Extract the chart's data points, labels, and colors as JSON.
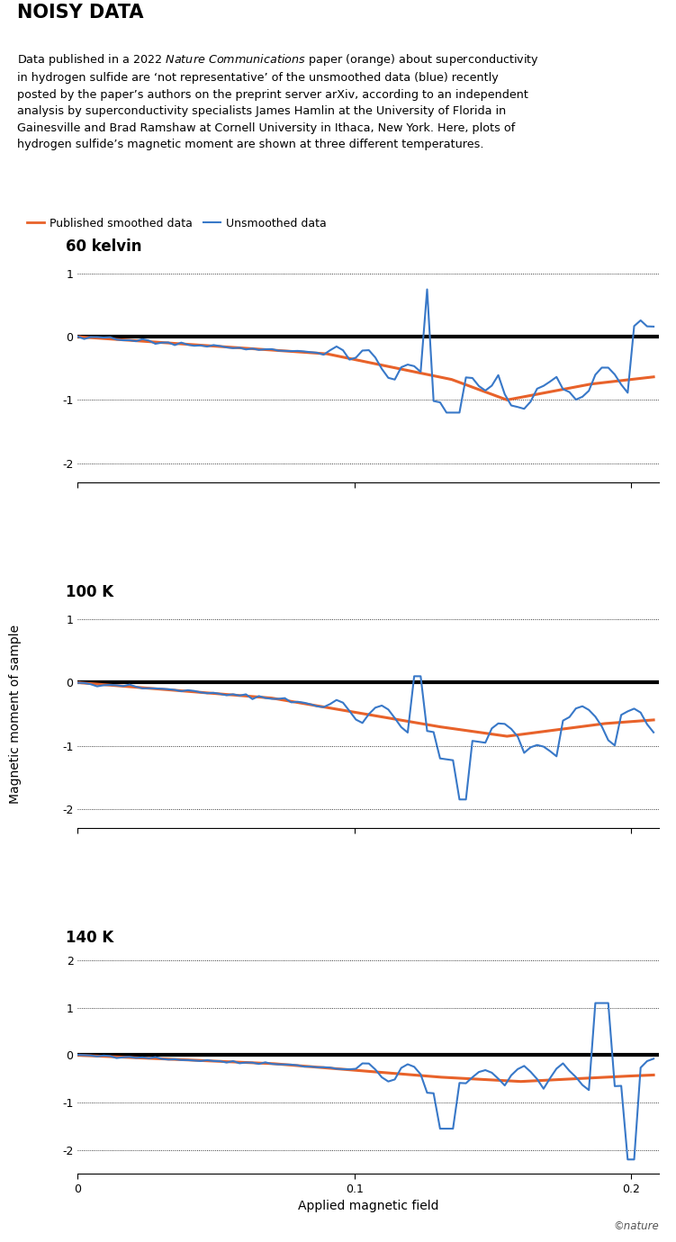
{
  "title": "NOISY DATA",
  "description_parts": [
    {
      "text": "Data published in a 2022 ",
      "italic": false
    },
    {
      "text": "Nature Communications",
      "italic": true
    },
    {
      "text": " paper (orange) about superconductivity in hydrogen sulfide are ‘not representative’ of the unsmoothed data (blue) recently posted by the paper’s authors on the preprint server arXiv, according to an independent analysis by superconductivity specialists James Hamlin at the University of Florida in Gainesville and Brad Ramshaw at Cornell University in Ithaca, New York. Here, plots of hydrogen sulfide’s magnetic moment are shown at three different temperatures.",
      "italic": false
    }
  ],
  "legend_smoothed": "Published smoothed data",
  "legend_unsmoothed": "Unsmoothed data",
  "color_smoothed": "#E8622A",
  "color_unsmoothed": "#3878C8",
  "ylabel": "Magnetic moment of sample",
  "xlabel": "Applied magnetic field",
  "copyright": "©nature",
  "subplots": [
    {
      "title": "60 kelvin",
      "ylim": [
        -2.3,
        1.3
      ],
      "yticks": [
        -2,
        -1,
        0,
        1
      ],
      "xlim": [
        0,
        0.21
      ],
      "xticks": [
        0,
        0.1,
        0.2
      ],
      "xtick_labels": [
        "0",
        "0.1",
        "0.2"
      ]
    },
    {
      "title": "100 K",
      "ylim": [
        -2.3,
        1.3
      ],
      "yticks": [
        -2,
        -1,
        0,
        1
      ],
      "xlim": [
        0,
        0.21
      ],
      "xticks": [
        0,
        0.1,
        0.2
      ],
      "xtick_labels": [
        "0",
        "0.1",
        "0.2"
      ]
    },
    {
      "title": "140 K",
      "ylim": [
        -2.5,
        2.3
      ],
      "yticks": [
        -2,
        -1,
        0,
        1,
        2
      ],
      "xlim": [
        0,
        0.21
      ],
      "xticks": [
        0,
        0.1,
        0.2
      ],
      "xtick_labels": [
        "0",
        "0.1",
        "0.2"
      ]
    }
  ]
}
